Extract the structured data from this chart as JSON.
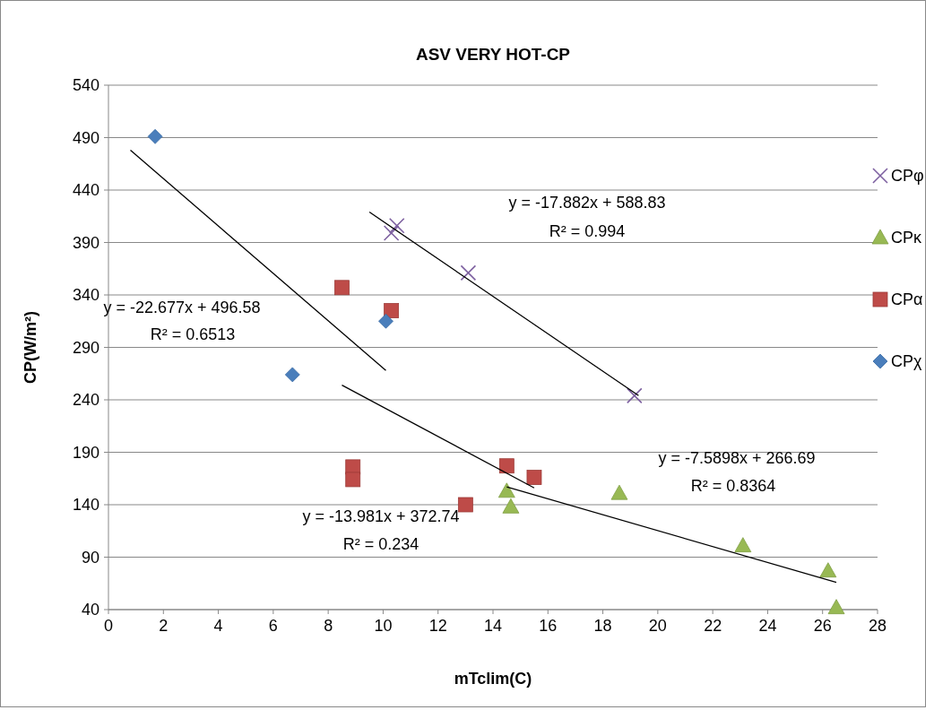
{
  "chart_data": {
    "type": "scatter",
    "title": "ASV VERY HOT-CP",
    "xlabel": "mTclim(C)",
    "ylabel": "CP(W/m²)",
    "xlim": [
      0,
      28
    ],
    "xticks": [
      0,
      2,
      4,
      6,
      8,
      10,
      12,
      14,
      16,
      18,
      20,
      22,
      24,
      26,
      28
    ],
    "ylim": [
      40,
      540
    ],
    "yticks": [
      40,
      90,
      140,
      190,
      240,
      290,
      340,
      390,
      440,
      490,
      540
    ],
    "grid": "y",
    "legend": "right",
    "series": [
      {
        "name": "CPφ",
        "color": "#7d60a0",
        "marker": "cross",
        "x": [
          10.3,
          10.5,
          13.1,
          19.15
        ],
        "values": [
          399,
          406,
          361,
          244
        ]
      },
      {
        "name": "CPκ",
        "color": "#98b954",
        "marker": "triangle",
        "x": [
          14.5,
          14.65,
          18.6,
          23.1,
          26.2,
          26.5
        ],
        "values": [
          153,
          138,
          151,
          101,
          77,
          42
        ]
      },
      {
        "name": "CPα",
        "color": "#be4b48",
        "marker": "square",
        "x": [
          8.5,
          10.3,
          8.9,
          8.9,
          13.0,
          14.5,
          15.5
        ],
        "values": [
          347,
          325,
          176,
          164,
          140,
          177,
          166
        ]
      },
      {
        "name": "CPχ",
        "color": "#4a7ebb",
        "marker": "diamond",
        "x": [
          1.7,
          6.7,
          10.1
        ],
        "values": [
          491,
          264,
          315
        ]
      },
      {
        "type": "line",
        "color": "#000000",
        "marker": "none",
        "x": [
          0.8,
          10.1
        ],
        "values": [
          478,
          268
        ]
      },
      {
        "type": "line",
        "color": "#000000",
        "marker": "none",
        "x": [
          9.5,
          19.3
        ],
        "values": [
          419,
          244
        ]
      },
      {
        "type": "line",
        "color": "#000000",
        "marker": "none",
        "x": [
          8.5,
          15.5
        ],
        "values": [
          254,
          156
        ]
      },
      {
        "type": "line",
        "color": "#000000",
        "marker": "none",
        "x": [
          14.5,
          26.5
        ],
        "values": [
          157,
          66
        ]
      }
    ],
    "annotations": [
      "y = -17.882x + 588.83",
      "R² = 0.994",
      "y = -22.677x + 496.58",
      "R² = 0.6513",
      "y = -7.5898x + 266.69",
      "R² = 0.8364",
      "y = -13.981x + 372.74",
      "R² = 0.234"
    ]
  }
}
